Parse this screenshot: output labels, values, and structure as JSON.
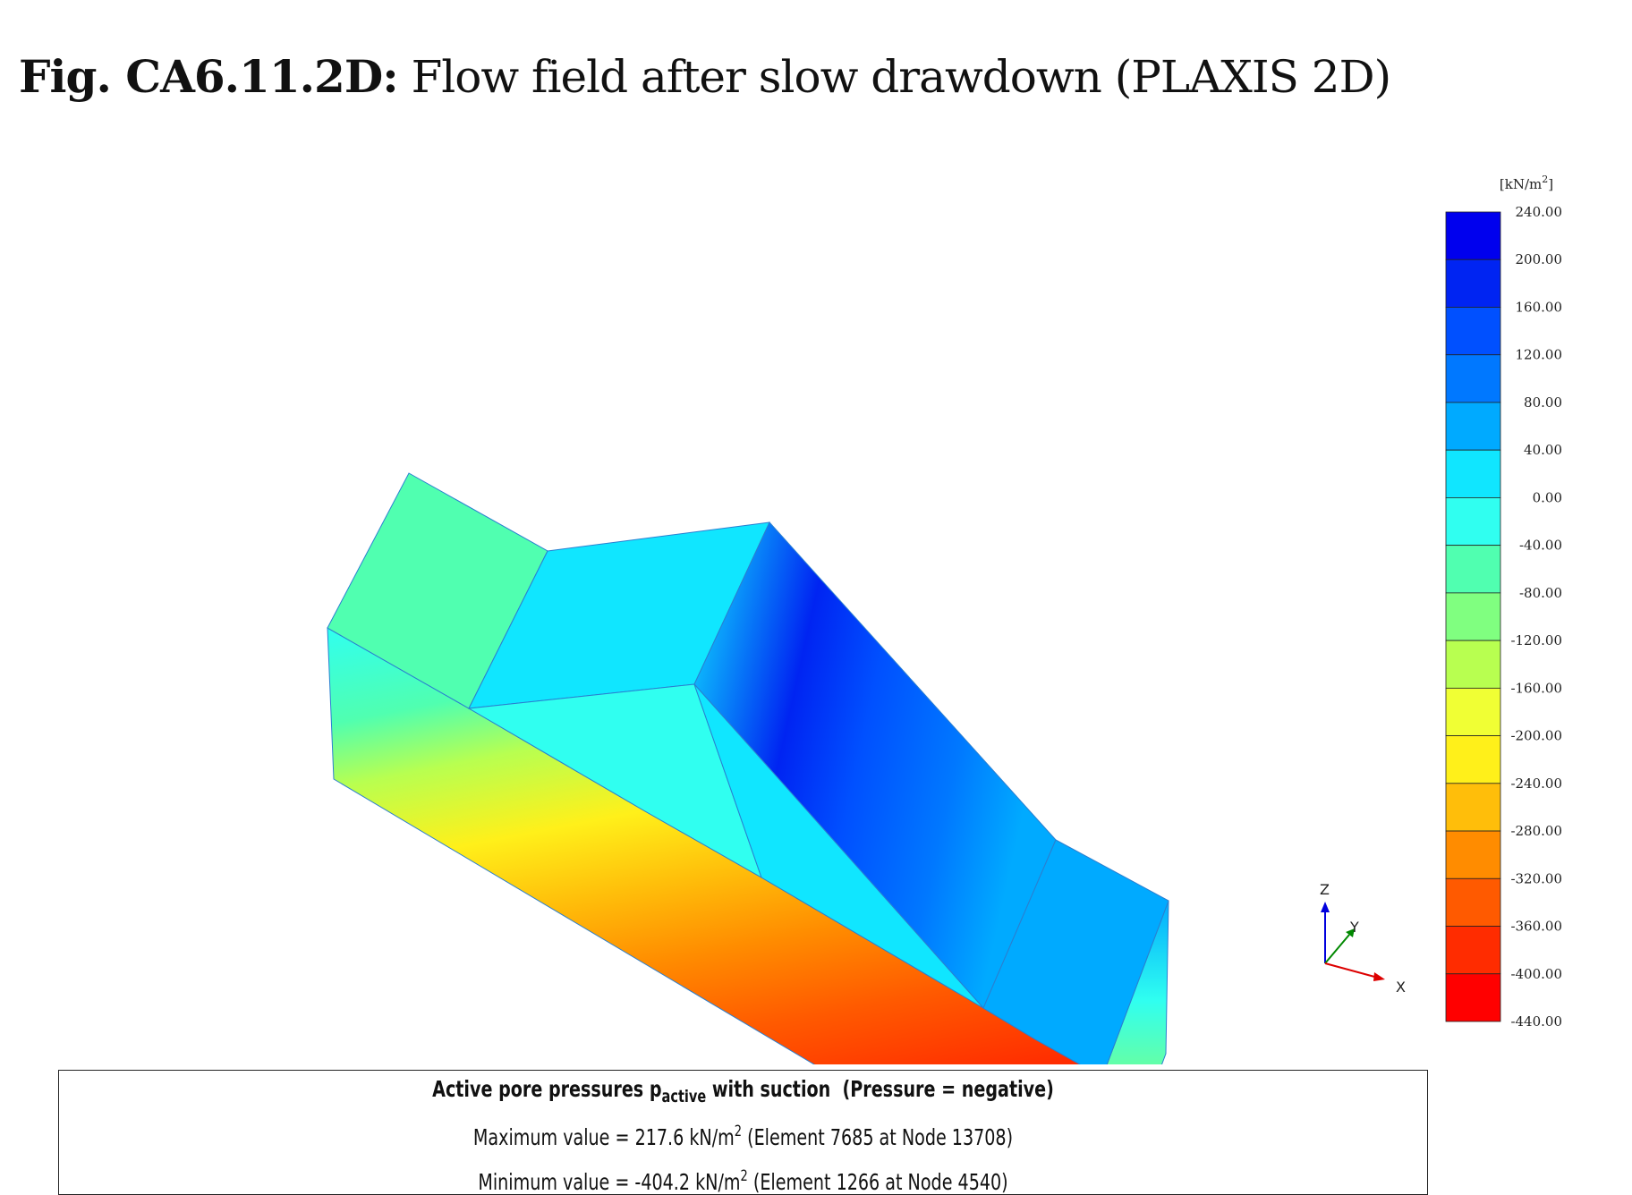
{
  "title": {
    "prefix": "Fig. CA6.11.2D:",
    "text": "Flow field after slow drawdown (PLAXIS 2D)"
  },
  "chart_data": {
    "type": "heatmap",
    "description_free": true,
    "colorbar": {
      "unit": "[kN/m²]",
      "unit_base": "[kN/m",
      "unit_sup": "2",
      "unit_end": "]",
      "tick_labels": [
        "240.00",
        "200.00",
        "160.00",
        "120.00",
        "80.00",
        "40.00",
        "0.00",
        "-40.00",
        "-80.00",
        "-120.00",
        "-160.00",
        "-200.00",
        "-240.00",
        "-280.00",
        "-320.00",
        "-360.00",
        "-400.00",
        "-440.00"
      ],
      "range": [
        -440,
        240
      ],
      "band_colors": [
        "#0000ee",
        "#0024f2",
        "#0050ff",
        "#0078ff",
        "#00aaff",
        "#10e6ff",
        "#30fff0",
        "#50ffb0",
        "#80ff80",
        "#b8ff50",
        "#f0ff34",
        "#fff01a",
        "#ffbe0a",
        "#ff8c00",
        "#ff5a00",
        "#ff2c00",
        "#ff0000"
      ]
    },
    "axes_triad": {
      "z": "Z",
      "y": "Y",
      "x": "X"
    },
    "annotation": {
      "heading_main": "Active pore pressures p",
      "heading_sub": "active",
      "heading_rest": " with suction  (Pressure = negative)",
      "max_prefix": "Maximum value = 217.6 kN/m",
      "max_sup": "2",
      "max_suffix": " (Element 7685 at Node 13708)",
      "min_prefix": "Minimum value = -404.2 kN/m",
      "min_sup": "2",
      "min_suffix": " (Element 1266 at Node 4540)",
      "max_value": 217.6,
      "min_value": -404.2
    }
  }
}
